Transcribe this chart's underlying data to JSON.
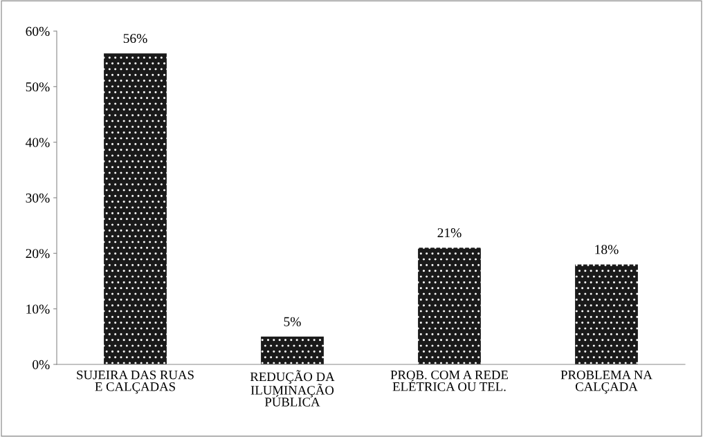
{
  "chart_data": {
    "type": "bar",
    "categories": [
      "SUJEIRA DAS RUAS\nE CALÇADAS",
      "REDUÇÃO DA\nILUMINAÇÃO\nPÚBLICA",
      "PROB. COM A REDE\nELÉTRICA OU TEL.",
      "PROBLEMA NA\nCALÇADA"
    ],
    "values": [
      56,
      5,
      21,
      18
    ],
    "value_labels": [
      "56%",
      "5%",
      "21%",
      "18%"
    ],
    "color": "#1a1a1a",
    "ylim": [
      0,
      60
    ],
    "yticks": [
      {
        "value": 0,
        "label": "0%"
      },
      {
        "value": 10,
        "label": "10%"
      },
      {
        "value": 20,
        "label": "20%"
      },
      {
        "value": 30,
        "label": "30%"
      },
      {
        "value": 40,
        "label": "40%"
      },
      {
        "value": 50,
        "label": "50%"
      },
      {
        "value": 60,
        "label": "60%"
      }
    ],
    "grid": false,
    "legend": false
  }
}
